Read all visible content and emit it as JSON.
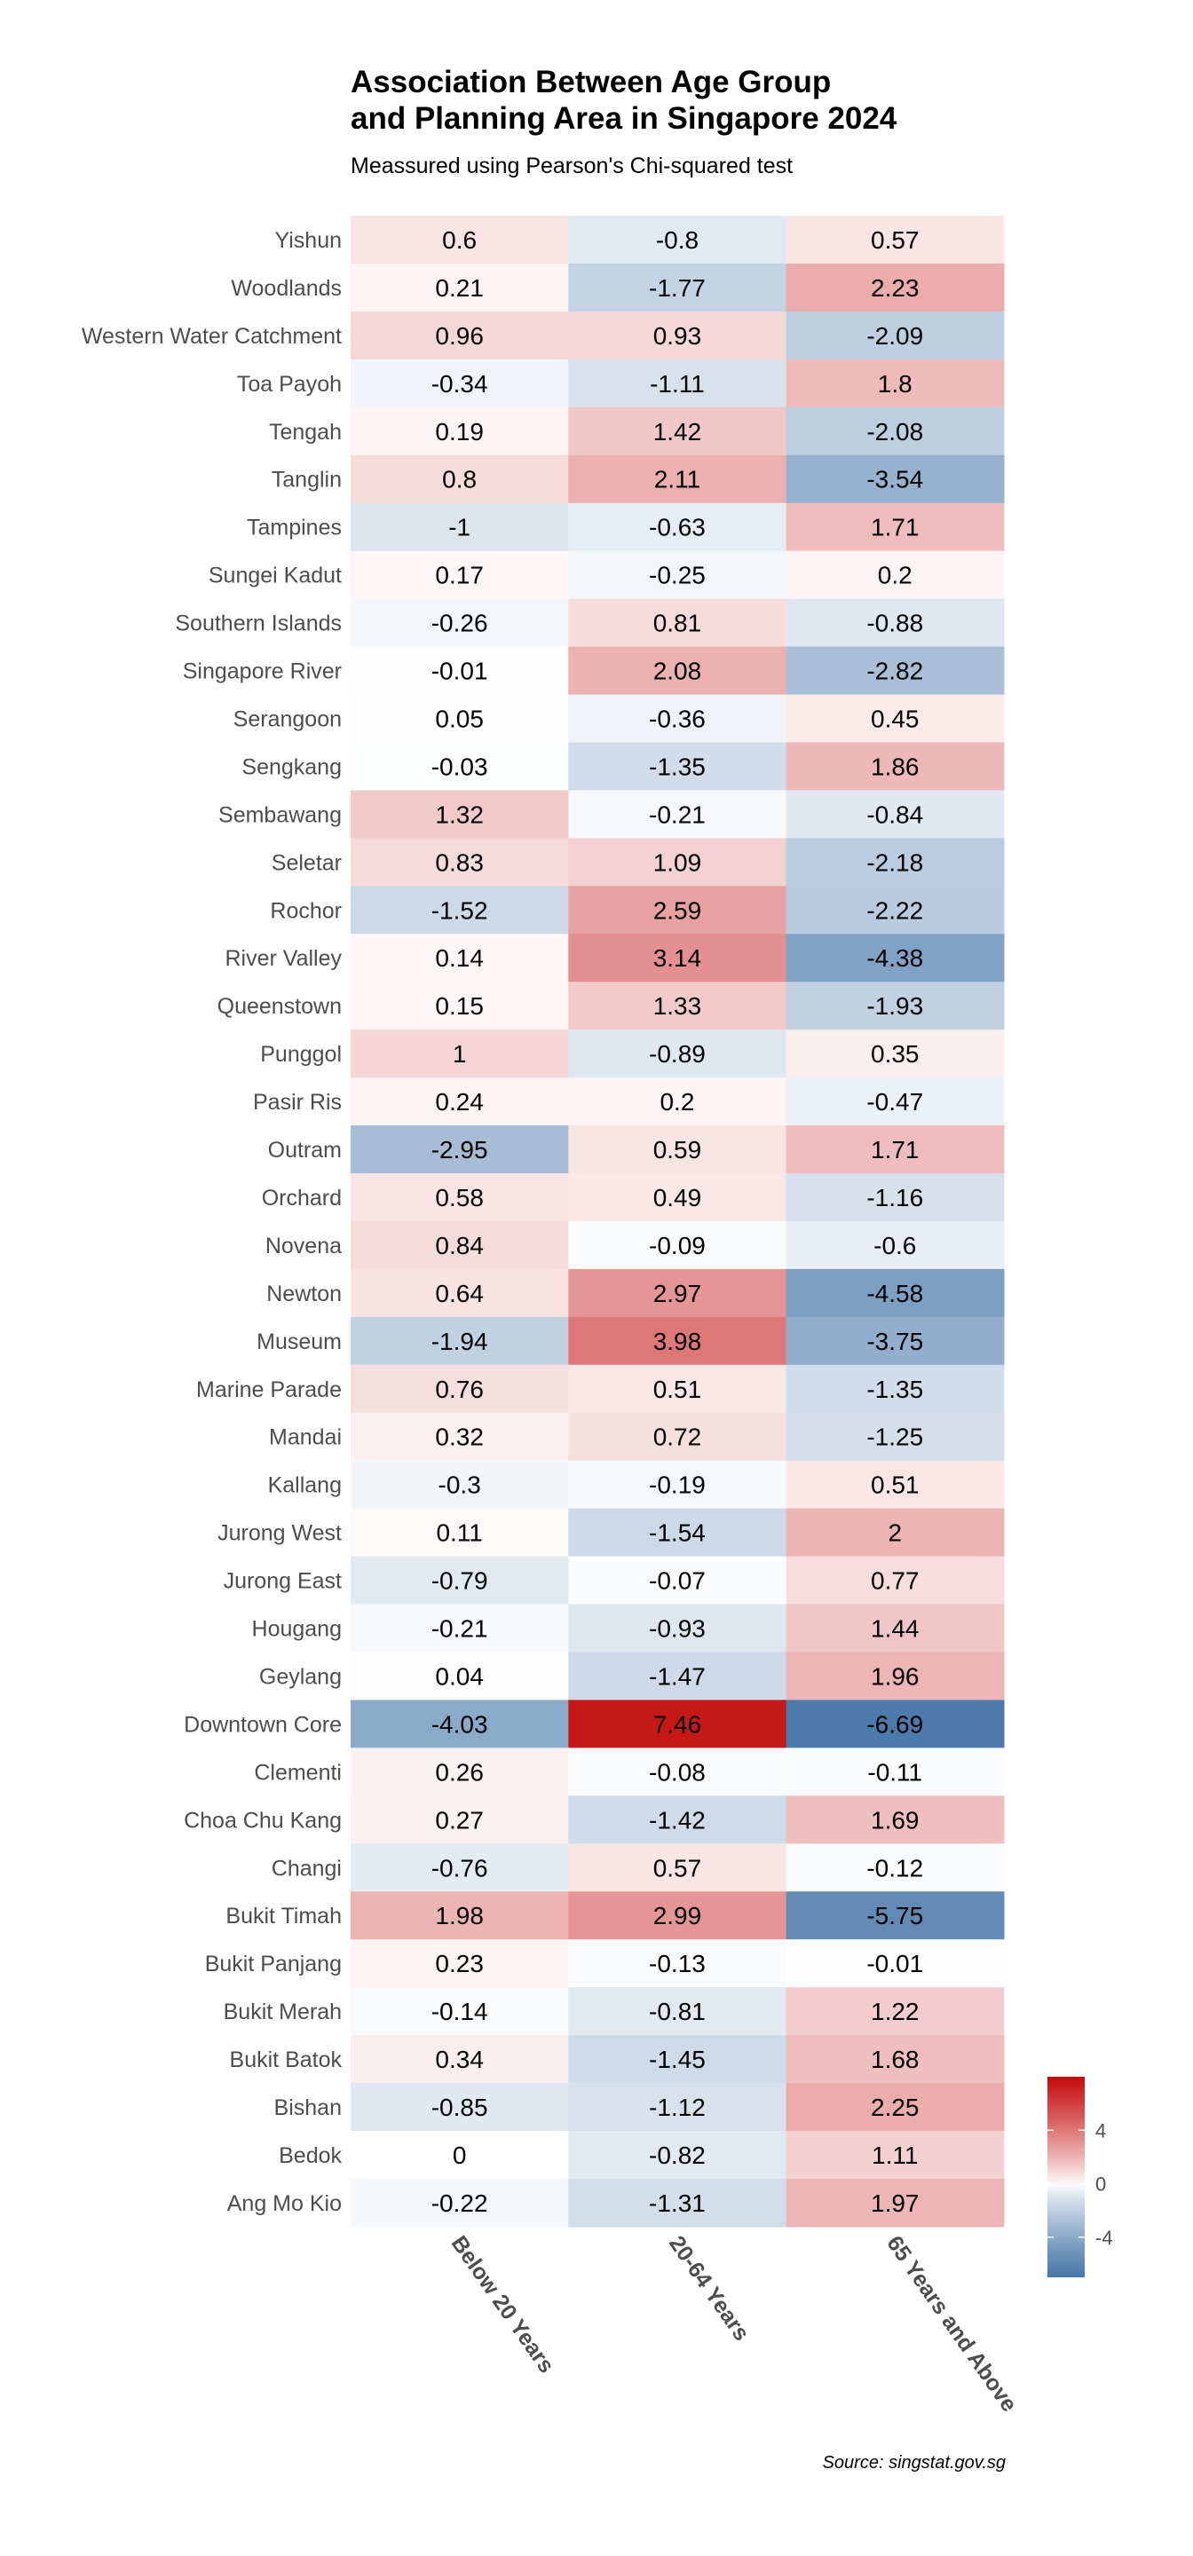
{
  "chart_data": {
    "type": "heatmap",
    "title_lines": [
      "Association Between Age Group",
      "and Planning Area in Singapore 2024"
    ],
    "subtitle": "Meassured using Pearson's Chi-squared test",
    "caption": "Source: singstat.gov.sg",
    "xlabel": "",
    "ylabel": "",
    "columns": [
      "Below 20 Years",
      "20-64 Years",
      "65 Years and Above"
    ],
    "rows": [
      {
        "area": "Yishun",
        "values": [
          0.6,
          -0.8,
          0.57
        ]
      },
      {
        "area": "Woodlands",
        "values": [
          0.21,
          -1.77,
          2.23
        ]
      },
      {
        "area": "Western Water Catchment",
        "values": [
          0.96,
          0.93,
          -2.09
        ]
      },
      {
        "area": "Toa Payoh",
        "values": [
          -0.34,
          -1.11,
          1.8
        ]
      },
      {
        "area": "Tengah",
        "values": [
          0.19,
          1.42,
          -2.08
        ]
      },
      {
        "area": "Tanglin",
        "values": [
          0.8,
          2.11,
          -3.54
        ]
      },
      {
        "area": "Tampines",
        "values": [
          -1,
          -0.63,
          1.71
        ]
      },
      {
        "area": "Sungei Kadut",
        "values": [
          0.17,
          -0.25,
          0.2
        ]
      },
      {
        "area": "Southern Islands",
        "values": [
          -0.26,
          0.81,
          -0.88
        ]
      },
      {
        "area": "Singapore River",
        "values": [
          -0.01,
          2.08,
          -2.82
        ]
      },
      {
        "area": "Serangoon",
        "values": [
          0.05,
          -0.36,
          0.45
        ]
      },
      {
        "area": "Sengkang",
        "values": [
          -0.03,
          -1.35,
          1.86
        ]
      },
      {
        "area": "Sembawang",
        "values": [
          1.32,
          -0.21,
          -0.84
        ]
      },
      {
        "area": "Seletar",
        "values": [
          0.83,
          1.09,
          -2.18
        ]
      },
      {
        "area": "Rochor",
        "values": [
          -1.52,
          2.59,
          -2.22
        ]
      },
      {
        "area": "River Valley",
        "values": [
          0.14,
          3.14,
          -4.38
        ]
      },
      {
        "area": "Queenstown",
        "values": [
          0.15,
          1.33,
          -1.93
        ]
      },
      {
        "area": "Punggol",
        "values": [
          1,
          -0.89,
          0.35
        ]
      },
      {
        "area": "Pasir Ris",
        "values": [
          0.24,
          0.2,
          -0.47
        ]
      },
      {
        "area": "Outram",
        "values": [
          -2.95,
          0.59,
          1.71
        ]
      },
      {
        "area": "Orchard",
        "values": [
          0.58,
          0.49,
          -1.16
        ]
      },
      {
        "area": "Novena",
        "values": [
          0.84,
          -0.09,
          -0.6
        ]
      },
      {
        "area": "Newton",
        "values": [
          0.64,
          2.97,
          -4.58
        ]
      },
      {
        "area": "Museum",
        "values": [
          -1.94,
          3.98,
          -3.75
        ]
      },
      {
        "area": "Marine Parade",
        "values": [
          0.76,
          0.51,
          -1.35
        ]
      },
      {
        "area": "Mandai",
        "values": [
          0.32,
          0.72,
          -1.25
        ]
      },
      {
        "area": "Kallang",
        "values": [
          -0.3,
          -0.19,
          0.51
        ]
      },
      {
        "area": "Jurong West",
        "values": [
          0.11,
          -1.54,
          2
        ]
      },
      {
        "area": "Jurong East",
        "values": [
          -0.79,
          -0.07,
          0.77
        ]
      },
      {
        "area": "Hougang",
        "values": [
          -0.21,
          -0.93,
          1.44
        ]
      },
      {
        "area": "Geylang",
        "values": [
          0.04,
          -1.47,
          1.96
        ]
      },
      {
        "area": "Downtown Core",
        "values": [
          -4.03,
          7.46,
          -6.69
        ]
      },
      {
        "area": "Clementi",
        "values": [
          0.26,
          -0.08,
          -0.11
        ]
      },
      {
        "area": "Choa Chu Kang",
        "values": [
          0.27,
          -1.42,
          1.69
        ]
      },
      {
        "area": "Changi",
        "values": [
          -0.76,
          0.57,
          -0.12
        ]
      },
      {
        "area": "Bukit Timah",
        "values": [
          1.98,
          2.99,
          -5.75
        ]
      },
      {
        "area": "Bukit Panjang",
        "values": [
          0.23,
          -0.13,
          -0.01
        ]
      },
      {
        "area": "Bukit Merah",
        "values": [
          -0.14,
          -0.81,
          1.22
        ]
      },
      {
        "area": "Bukit Batok",
        "values": [
          0.34,
          -1.45,
          1.68
        ]
      },
      {
        "area": "Bishan",
        "values": [
          -0.85,
          -1.12,
          2.25
        ]
      },
      {
        "area": "Bedok",
        "values": [
          0,
          -0.82,
          1.11
        ]
      },
      {
        "area": "Ang Mo Kio",
        "values": [
          -0.22,
          -1.31,
          1.97
        ]
      }
    ],
    "color_scale": {
      "low_color": "#4575a8",
      "mid_color": "#ffffff",
      "high_color": "#c40a0a",
      "midpoint": 0,
      "min": -7,
      "max": 8
    },
    "legend": {
      "position": "right",
      "ticks": [
        4,
        0,
        -4
      ],
      "tick_labels": [
        "4",
        "0",
        "-4"
      ]
    },
    "grid": false
  }
}
